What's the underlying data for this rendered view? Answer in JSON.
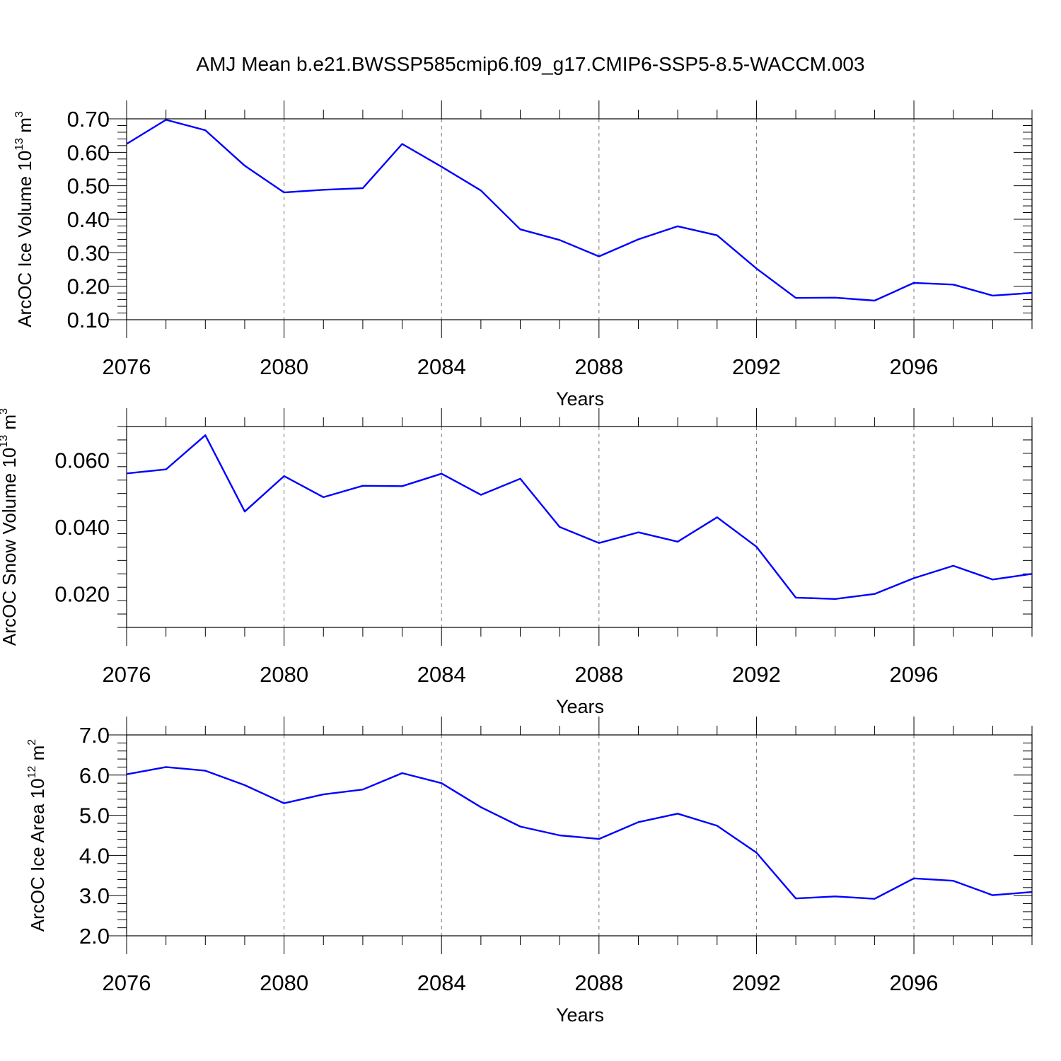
{
  "figure": {
    "title": "AMJ Mean b.e21.BWSSP585cmip6.f09_g17.CMIP6-SSP5-8.5-WACCM.003",
    "line_color": "#0000ff",
    "grid_color": "#777777"
  },
  "chart_data": [
    {
      "type": "line",
      "title": "",
      "xlabel": "Years",
      "ylabel": {
        "base": "ArcOC Ice Volume 10",
        "exp": "13",
        "unit": " m",
        "unit_exp": "3"
      },
      "xlim": [
        2076,
        2099
      ],
      "ylim": [
        0.1,
        0.7
      ],
      "xticks": [
        2076,
        2080,
        2084,
        2088,
        2092,
        2096
      ],
      "xtick_labels": [
        "2076",
        "2080",
        "2084",
        "2088",
        "2092",
        "2096"
      ],
      "yticks": [
        0.1,
        0.2,
        0.3,
        0.4,
        0.5,
        0.6,
        0.7
      ],
      "ytick_labels": [
        "0.10",
        "0.20",
        "0.30",
        "0.40",
        "0.50",
        "0.60",
        "0.70"
      ],
      "grid": "x-dashed",
      "x": [
        2076,
        2077,
        2078,
        2079,
        2080,
        2081,
        2082,
        2083,
        2084,
        2085,
        2086,
        2087,
        2088,
        2089,
        2090,
        2091,
        2092,
        2093,
        2094,
        2095,
        2096,
        2097,
        2098,
        2099
      ],
      "series": [
        {
          "name": "Ice Volume",
          "values": [
            0.625,
            0.697,
            0.666,
            0.56,
            0.48,
            0.488,
            0.493,
            0.625,
            0.557,
            0.486,
            0.37,
            0.338,
            0.289,
            0.34,
            0.379,
            0.352,
            0.253,
            0.165,
            0.166,
            0.157,
            0.21,
            0.205,
            0.172,
            0.18
          ]
        }
      ]
    },
    {
      "type": "line",
      "title": "",
      "xlabel": "Years",
      "ylabel": {
        "base": "ArcOC Snow Volume 10",
        "exp": "13",
        "unit": " m",
        "unit_exp": "3"
      },
      "xlim": [
        2076,
        2099
      ],
      "ylim": [
        0.01,
        0.07
      ],
      "xticks": [
        2076,
        2080,
        2084,
        2088,
        2092,
        2096
      ],
      "xtick_labels": [
        "2076",
        "2080",
        "2084",
        "2088",
        "2092",
        "2096"
      ],
      "yticks": [
        0.02,
        0.04,
        0.06
      ],
      "ytick_labels": [
        "0.020",
        "0.040",
        "0.060"
      ],
      "grid": "x-dashed",
      "x": [
        2076,
        2077,
        2078,
        2079,
        2080,
        2081,
        2082,
        2083,
        2084,
        2085,
        2086,
        2087,
        2088,
        2089,
        2090,
        2091,
        2092,
        2093,
        2094,
        2095,
        2096,
        2097,
        2098,
        2099
      ],
      "series": [
        {
          "name": "Snow Volume",
          "values": [
            0.056,
            0.0572,
            0.0674,
            0.0446,
            0.0552,
            0.0489,
            0.0523,
            0.0522,
            0.0559,
            0.0496,
            0.0544,
            0.04,
            0.0352,
            0.0384,
            0.0356,
            0.0429,
            0.0341,
            0.0189,
            0.0185,
            0.02,
            0.0247,
            0.0284,
            0.0243,
            0.026
          ]
        }
      ]
    },
    {
      "type": "line",
      "title": "",
      "xlabel": "Years",
      "ylabel": {
        "base": "ArcOC Ice Area 10",
        "exp": "12",
        "unit": " m",
        "unit_exp": "2"
      },
      "xlim": [
        2076,
        2099
      ],
      "ylim": [
        2.0,
        7.0
      ],
      "xticks": [
        2076,
        2080,
        2084,
        2088,
        2092,
        2096
      ],
      "xtick_labels": [
        "2076",
        "2080",
        "2084",
        "2088",
        "2092",
        "2096"
      ],
      "yticks": [
        2.0,
        3.0,
        4.0,
        5.0,
        6.0,
        7.0
      ],
      "ytick_labels": [
        "2.0",
        "3.0",
        "4.0",
        "5.0",
        "6.0",
        "7.0"
      ],
      "grid": "x-dashed",
      "x": [
        2076,
        2077,
        2078,
        2079,
        2080,
        2081,
        2082,
        2083,
        2084,
        2085,
        2086,
        2087,
        2088,
        2089,
        2090,
        2091,
        2092,
        2093,
        2094,
        2095,
        2096,
        2097,
        2098,
        2099
      ],
      "series": [
        {
          "name": "Ice Area",
          "values": [
            6.02,
            6.2,
            6.11,
            5.75,
            5.3,
            5.52,
            5.64,
            6.05,
            5.8,
            5.2,
            4.72,
            4.5,
            4.41,
            4.83,
            5.04,
            4.74,
            4.07,
            2.93,
            2.98,
            2.92,
            3.43,
            3.37,
            3.01,
            3.09
          ]
        }
      ]
    }
  ]
}
